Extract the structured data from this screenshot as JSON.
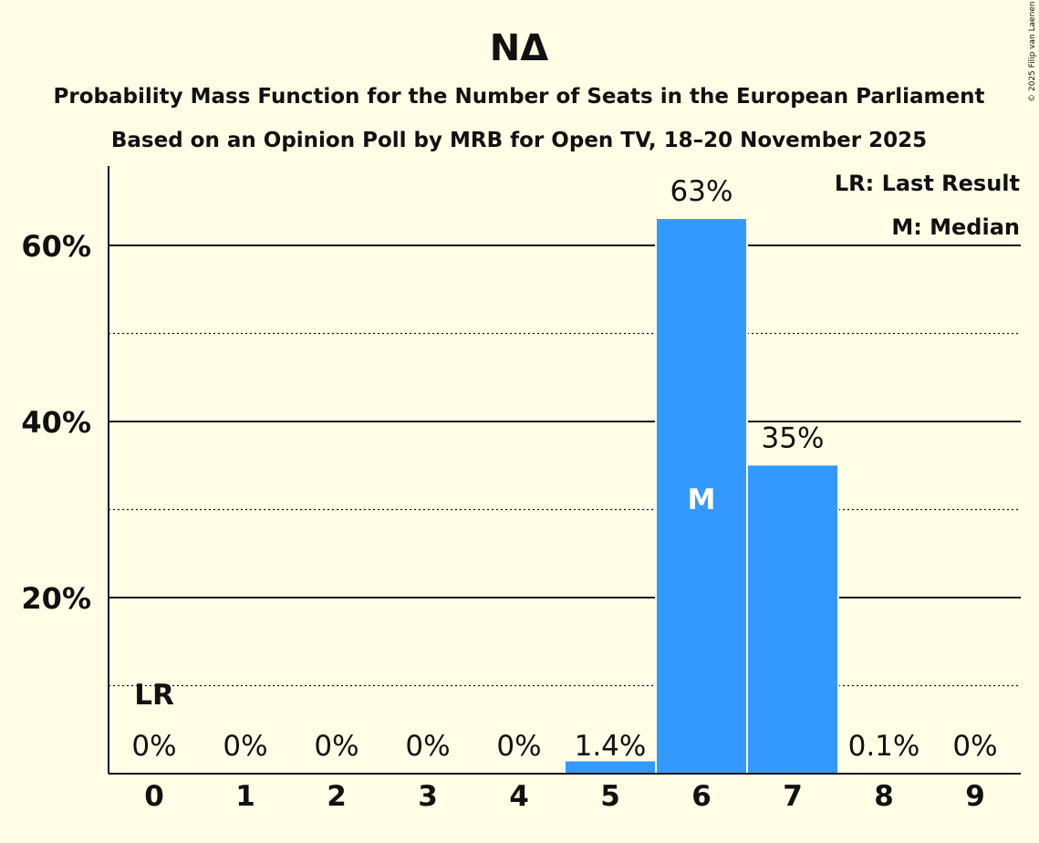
{
  "chart_data": {
    "type": "bar",
    "title": "ΝΔ",
    "subtitle1": "Probability Mass Function for the Number of Seats in the European Parliament",
    "subtitle2": "Based on an Opinion Poll by MRB for Open TV, 18–20 November 2025",
    "categories": [
      "0",
      "1",
      "2",
      "3",
      "4",
      "5",
      "6",
      "7",
      "8",
      "9"
    ],
    "values": [
      0,
      0,
      0,
      0,
      0,
      1.4,
      63,
      35,
      0.1,
      0
    ],
    "value_labels": [
      "0%",
      "0%",
      "0%",
      "0%",
      "0%",
      "1.4%",
      "63%",
      "35%",
      "0.1%",
      "0%"
    ],
    "ylim": [
      0,
      69
    ],
    "yticks": [
      {
        "value": 20,
        "label": "20%"
      },
      {
        "value": 40,
        "label": "40%"
      },
      {
        "value": 60,
        "label": "60%"
      }
    ],
    "minor_gridlines": [
      10,
      30,
      50
    ],
    "last_result_index": 0,
    "last_result_marker": "LR",
    "median_index": 6,
    "median_marker": "M",
    "legend": [
      "LR: Last Result",
      "M: Median"
    ],
    "legend_position": "top-right",
    "bar_color": "#3399ff",
    "background_color": "#fffde6",
    "copyright": "© 2025 Filip van Laenen"
  }
}
